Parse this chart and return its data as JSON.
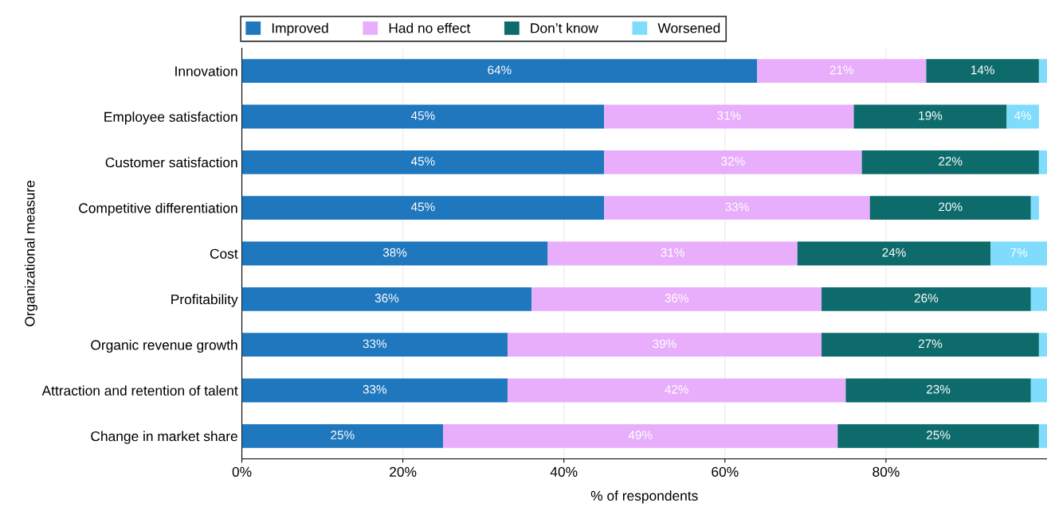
{
  "chart_data": {
    "type": "bar",
    "orientation": "horizontal",
    "stacked": true,
    "xlabel": "% of respondents",
    "ylabel": "Organizational measure",
    "categories": [
      "Innovation",
      "Employee satisfaction",
      "Customer satisfaction",
      "Competitive differentiation",
      "Cost",
      "Profitability",
      "Organic revenue growth",
      "Attraction and retention of talent",
      "Change in market share"
    ],
    "series": [
      {
        "name": "Improved",
        "color": "#1f77be",
        "values": [
          64,
          45,
          45,
          45,
          38,
          36,
          33,
          33,
          25
        ],
        "value_labels": [
          "64%",
          "45%",
          "45%",
          "45%",
          "38%",
          "36%",
          "33%",
          "33%",
          "25%"
        ]
      },
      {
        "name": "Had no effect",
        "color": "#e8aefc",
        "values": [
          21,
          31,
          32,
          33,
          31,
          36,
          39,
          42,
          49
        ],
        "value_labels": [
          "21%",
          "31%",
          "32%",
          "33%",
          "31%",
          "36%",
          "39%",
          "42%",
          "49%"
        ]
      },
      {
        "name": "Don’t know",
        "color": "#0e6b6b",
        "values": [
          14,
          19,
          22,
          20,
          24,
          26,
          27,
          23,
          25
        ],
        "value_labels": [
          "14%",
          "19%",
          "22%",
          "20%",
          "24%",
          "26%",
          "27%",
          "23%",
          "25%"
        ]
      },
      {
        "name": "Worsened",
        "color": "#7fdcfc",
        "values": [
          1,
          4,
          1,
          1,
          7,
          2,
          1,
          2,
          1
        ],
        "value_labels": [
          null,
          "4%",
          null,
          null,
          "7%",
          null,
          null,
          null,
          null
        ]
      }
    ],
    "xlim": [
      0,
      100
    ],
    "xticks": [
      {
        "value": 0,
        "label": "0%"
      },
      {
        "value": 20,
        "label": "20%"
      },
      {
        "value": 40,
        "label": "40%"
      },
      {
        "value": 60,
        "label": "60%"
      },
      {
        "value": 80,
        "label": "80%"
      }
    ],
    "grid": "x",
    "legend": "top"
  }
}
